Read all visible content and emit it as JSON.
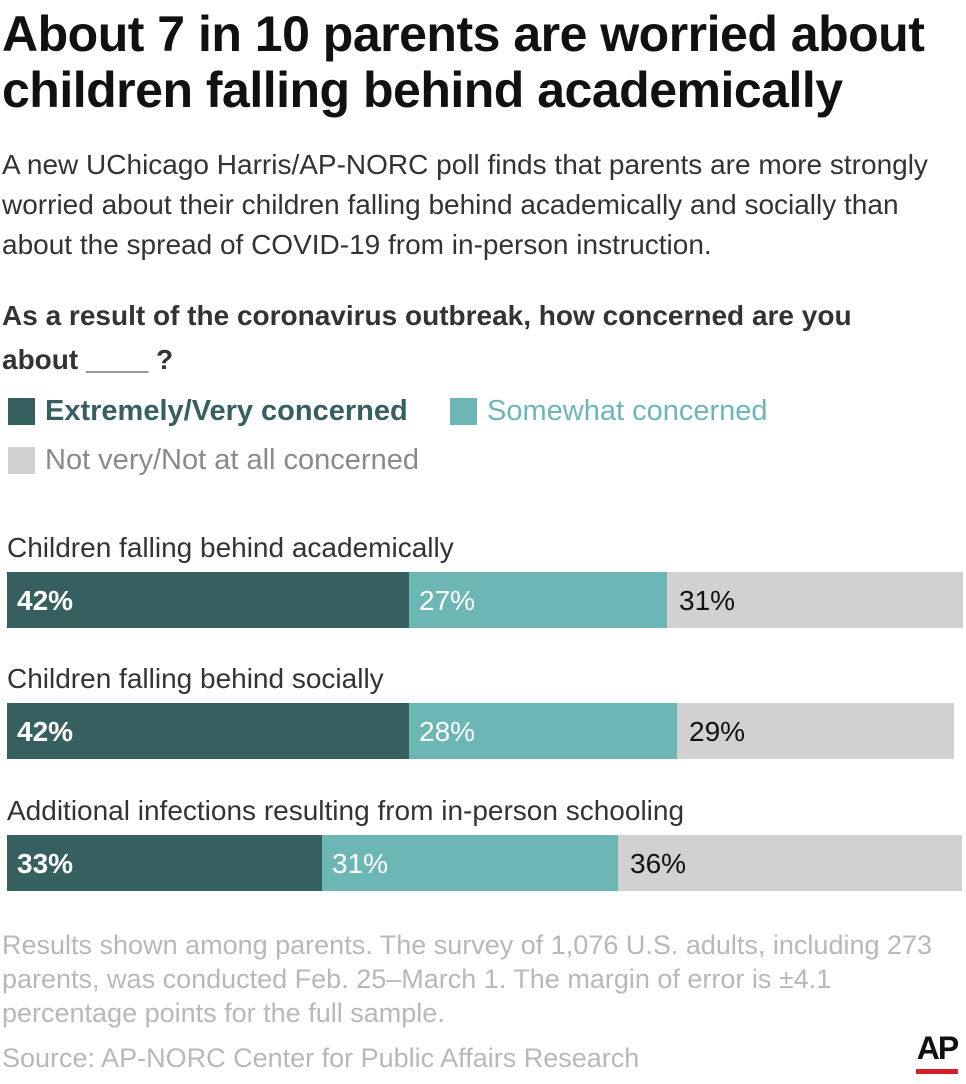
{
  "title": "About 7 in 10 parents are worried about children falling behind academically",
  "subtitle": "A new UChicago Harris/AP-NORC poll finds that parents are more strongly worried about their children falling behind academically and socially than about the spread of COVID-19 from in-person instruction.",
  "question": "As a result of the coronavirus outbreak, how concerned are you about ____ ?",
  "note": "Results shown among parents. The survey of 1,076 U.S. adults, including 273 parents, was conducted Feb. 25–March 1. The margin of error is ±4.1 percentage points for the full sample.",
  "source": "Source: AP-NORC Center for Public Affairs Research",
  "logo": "AP",
  "colors": {
    "extremely": "#36605f",
    "somewhat": "#6cb7b6",
    "not": "#d1d1d3"
  },
  "chart_data": {
    "type": "bar",
    "orientation": "horizontal-stacked",
    "categories": [
      "Children falling behind academically",
      "Children falling behind socially",
      "Additional infections resulting from in-person schooling"
    ],
    "series": [
      {
        "name": "Extremely/Very concerned",
        "values": [
          42,
          42,
          33
        ],
        "labels": [
          "42%",
          "42%",
          "33%"
        ]
      },
      {
        "name": "Somewhat concerned",
        "values": [
          27,
          28,
          31
        ],
        "labels": [
          "27%",
          "28%",
          "31%"
        ]
      },
      {
        "name": "Not very/Not at all concerned",
        "values": [
          31,
          29,
          36
        ],
        "labels": [
          "31%",
          "29%",
          "36%"
        ]
      }
    ],
    "xlim": [
      0,
      100
    ],
    "legend": "top",
    "grid": false
  }
}
